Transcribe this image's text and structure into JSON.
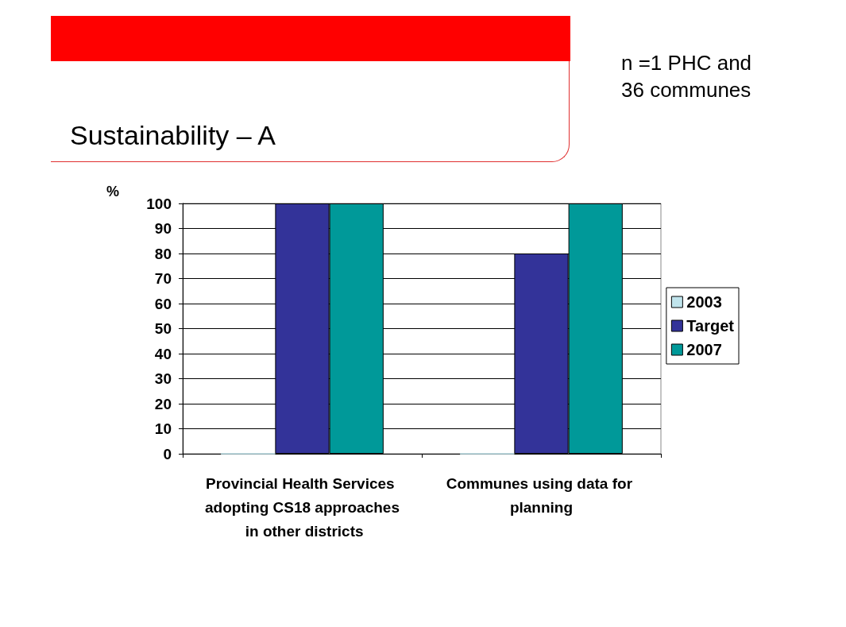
{
  "chart_data": {
    "type": "bar",
    "title": "Sustainability – A",
    "annotations": [
      "n =1 PHC and 36 communes"
    ],
    "ylabel": "%",
    "categories": [
      "Provincial Health Services adopting CS18 approaches in other districts",
      "Communes using data for planning"
    ],
    "series": [
      {
        "name": "2003",
        "color": "#c0e4ec",
        "values": [
          0,
          0
        ]
      },
      {
        "name": "Target",
        "color": "#333399",
        "values": [
          100,
          80
        ]
      },
      {
        "name": "2007",
        "color": "#009999",
        "values": [
          100,
          100
        ]
      }
    ],
    "ylim": [
      0,
      100
    ],
    "yticks": [
      0,
      10,
      20,
      30,
      40,
      50,
      60,
      70,
      80,
      90,
      100
    ],
    "grid": "y",
    "legend": "right"
  }
}
